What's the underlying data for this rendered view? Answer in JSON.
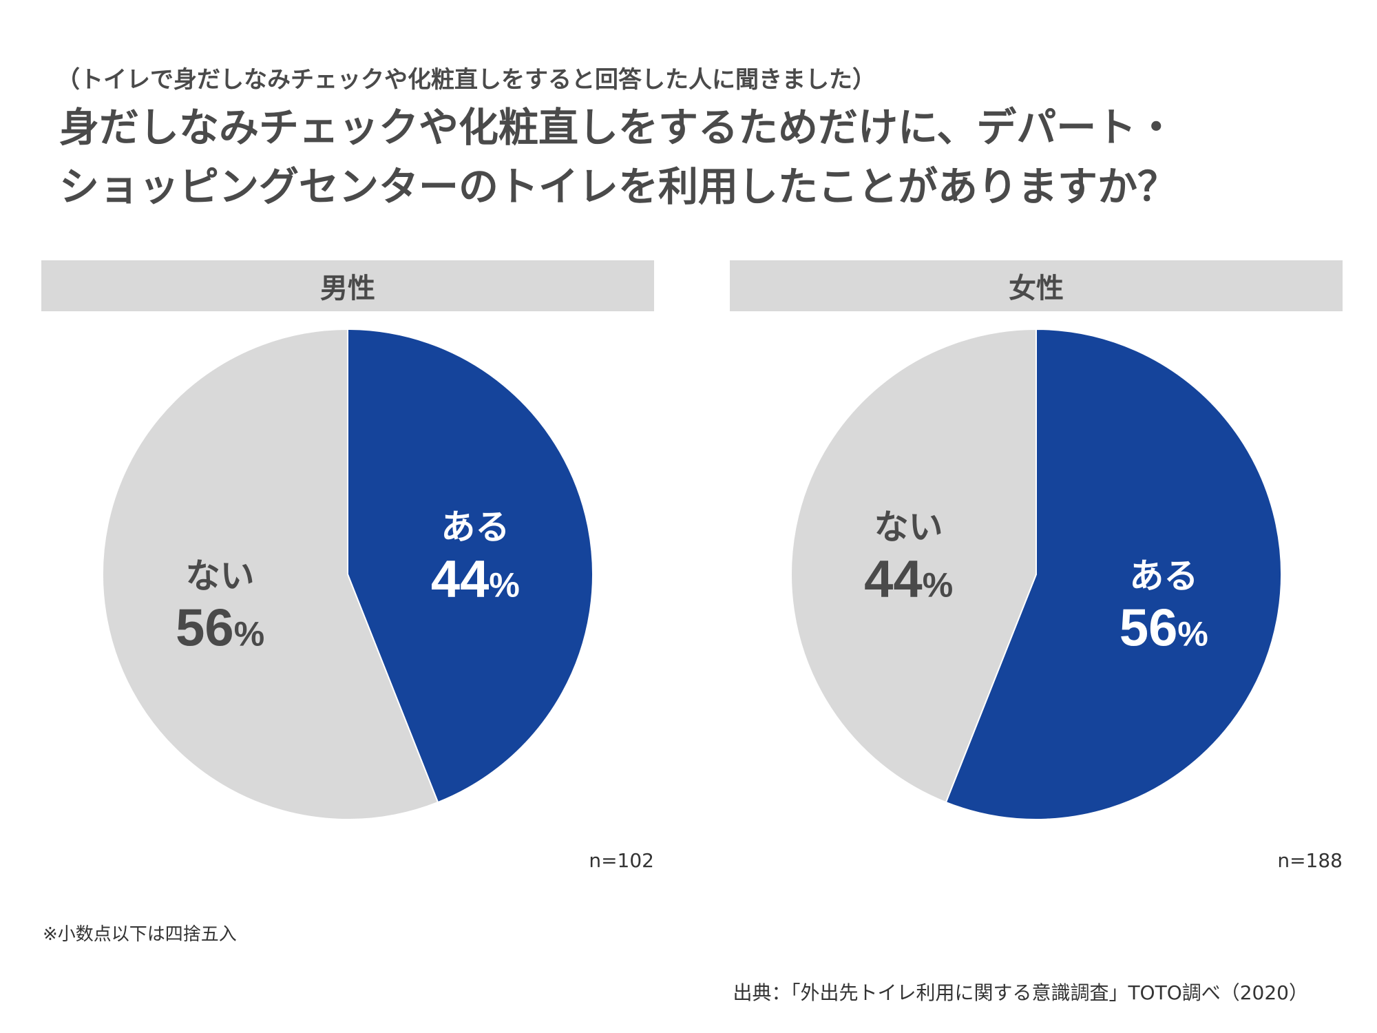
{
  "subtitle": "（トイレで身だしなみチェックや化粧直しをすると回答した人に聞きました）",
  "title_line1": "身だしなみチェックや化粧直しをするためだけに、デパート・",
  "title_line2": "ショッピングセンターのトイレを利用したことがありますか？",
  "footnote": "※小数点以下は四捨五入",
  "source": "出典：「外出先トイレ利用に関する意識調査」TOTO調べ（2020）",
  "colors": {
    "yes": "#15449b",
    "no": "#d9d9d9",
    "header": "#d9d9d9",
    "yes_text": "#ffffff",
    "no_text": "#4a4a4a"
  },
  "chart_data": [
    {
      "type": "pie",
      "title": "男性",
      "n_label": "n=102",
      "slices": [
        {
          "label": "ある",
          "value": 44,
          "value_label": "44%"
        },
        {
          "label": "ない",
          "value": 56,
          "value_label": "56%"
        }
      ]
    },
    {
      "type": "pie",
      "title": "女性",
      "n_label": "n=188",
      "slices": [
        {
          "label": "ある",
          "value": 56,
          "value_label": "56%"
        },
        {
          "label": "ない",
          "value": 44,
          "value_label": "44%"
        }
      ]
    }
  ]
}
